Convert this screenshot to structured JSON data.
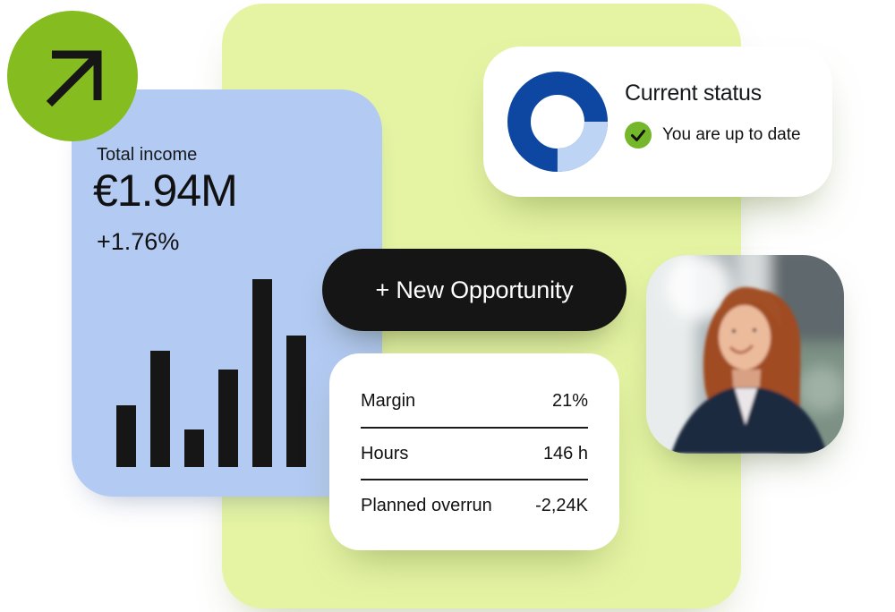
{
  "growth_badge": {
    "icon": "arrow-up-right"
  },
  "income_card": {
    "label": "Total income",
    "value": "€1.94M",
    "delta": "+1.76%"
  },
  "status_card": {
    "title": "Current status",
    "message": "You are up to date",
    "icon": "checkmark"
  },
  "action_button": {
    "label": "+ New Opportunity"
  },
  "metrics_card": {
    "rows": [
      {
        "label": "Margin",
        "value": "21%"
      },
      {
        "label": "Hours",
        "value": "146 h"
      },
      {
        "label": "Planned overrun",
        "value": "-2,24K"
      }
    ]
  },
  "photo": {
    "alt": "Smiling businesswoman with red hair in dark blazer, blurred office buildings behind"
  },
  "colors": {
    "background_panel_green": "#E4F4A3",
    "income_card_blue": "#B3CAF2",
    "badge_green": "#85BC20",
    "check_green": "#74B72B",
    "ink_black": "#161616",
    "donut_primary_blue": "#0E47A1",
    "donut_secondary_blue": "#BED4F4"
  },
  "chart_data": [
    {
      "type": "bar",
      "title": "Total income trend (unlabeled sparkline bars)",
      "categories": [
        "",
        "",
        "",
        "",
        "",
        ""
      ],
      "values": [
        33,
        62,
        20,
        52,
        100,
        70
      ],
      "xlabel": "",
      "ylabel": "",
      "ylim": [
        0,
        100
      ],
      "grid": false,
      "bar_color": "#161616"
    },
    {
      "type": "pie",
      "title": "Current status donut",
      "donut": true,
      "start_angle_from_top_deg": 90,
      "slices": [
        {
          "name": "primary",
          "value": 75,
          "color": "#0E47A1"
        },
        {
          "name": "secondary",
          "value": 25,
          "color": "#BED4F4"
        }
      ],
      "legend": "none"
    }
  ]
}
